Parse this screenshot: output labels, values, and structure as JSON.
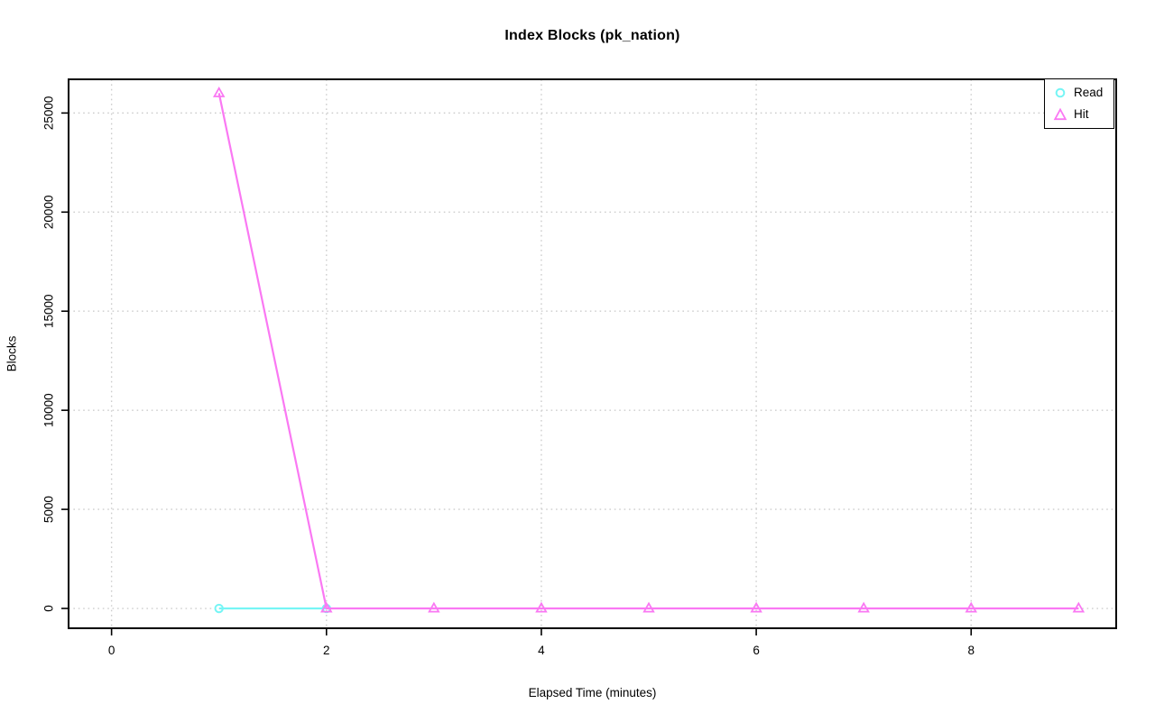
{
  "chart_data": {
    "type": "line",
    "title": "Index Blocks (pk_nation)",
    "xlabel": "Elapsed Time (minutes)",
    "ylabel": "Blocks",
    "x_ticks": [
      0,
      2,
      4,
      6,
      8
    ],
    "y_ticks": [
      0,
      5000,
      10000,
      15000,
      20000,
      25000
    ],
    "xlim": [
      -0.4,
      9.35
    ],
    "ylim": [
      -1000,
      26700
    ],
    "grid": "dotted",
    "grid_color": "#CDCDCD",
    "axis_color": "#000000",
    "plot_background": "#FFFFFF",
    "legend": {
      "position": "top-right",
      "items": [
        "Read",
        "Hit"
      ]
    },
    "series": [
      {
        "name": "Read",
        "color": "#76F5F5",
        "marker": "circle",
        "x": [
          1,
          2
        ],
        "y": [
          0,
          0
        ]
      },
      {
        "name": "Hit",
        "color": "#FA78F3",
        "marker": "triangle",
        "x": [
          1,
          2,
          3,
          4,
          5,
          6,
          7,
          8,
          9
        ],
        "y": [
          26000,
          0,
          0,
          0,
          0,
          0,
          0,
          0,
          0
        ]
      }
    ]
  }
}
